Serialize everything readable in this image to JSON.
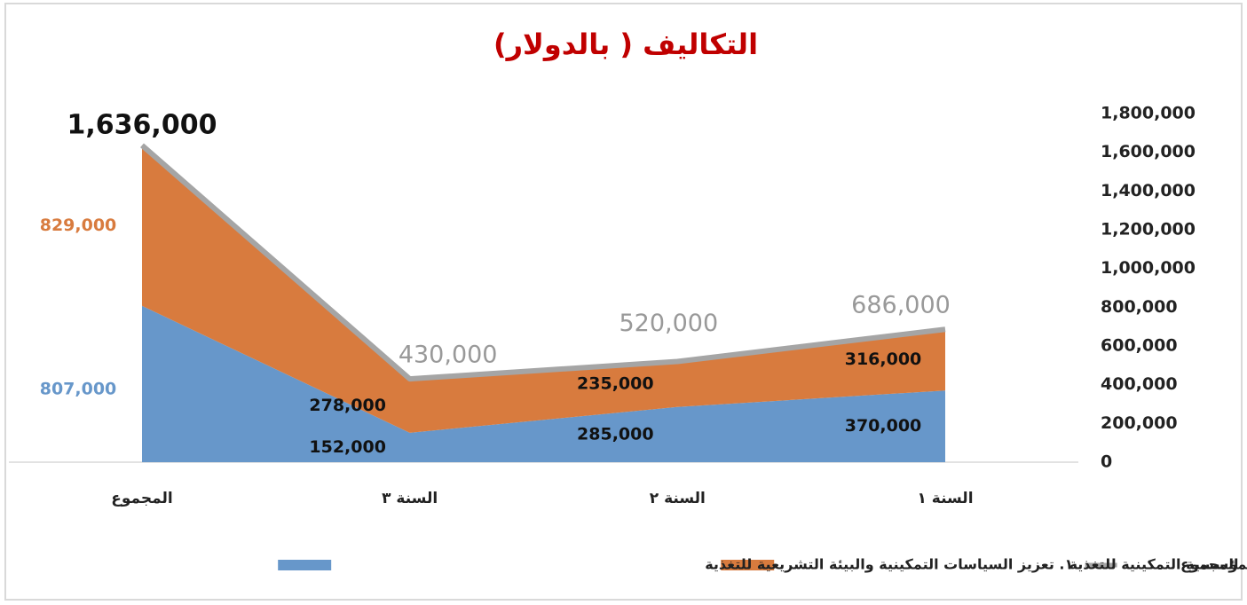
{
  "chart_data": {
    "type": "stacked_area",
    "title": "التكاليف ( بالدولار)",
    "categories": [
      "السنة ١",
      "السنة ٢",
      "السنة ٣",
      "المجموع"
    ],
    "x_reversed": true,
    "series": [
      {
        "name": "١. تعزيز السياسات التمكينية والبيئة التشريعية للتغذية",
        "color": "#6797ca",
        "values": [
          370000,
          285000,
          152000,
          807000
        ],
        "value_labels": [
          "370,000",
          "285,000",
          "152,000",
          "807,000"
        ]
      },
      {
        "name": "٢. تعزيز البنية المؤسسية التمكينية للتغذية",
        "color": "#d87b3e",
        "values": [
          316000,
          235000,
          278000,
          829000
        ],
        "value_labels": [
          "316,000",
          "235,000",
          "278,000",
          "829,000"
        ]
      },
      {
        "name": "المجموع",
        "color": "#a5a5a5",
        "kind": "line",
        "values": [
          686000,
          520000,
          430000,
          1636000
        ],
        "value_labels": [
          "686,000",
          "520,000",
          "430,000",
          "1,636,000"
        ]
      }
    ],
    "ylim": [
      0,
      1800000
    ],
    "yticks": [
      0,
      {
        "value": 200000,
        "label": "200,000"
      },
      {
        "value": 400000,
        "label": "400,000"
      },
      {
        "value": 600000,
        "label": "600,000"
      },
      {
        "value": 800000,
        "label": "800,000"
      },
      {
        "value": 1000000,
        "label": "1,000,000"
      },
      {
        "value": 1200000,
        "label": "1,200,000"
      },
      {
        "value": 1400000,
        "label": "1,400,000"
      },
      {
        "value": 1600000,
        "label": "1,600,000"
      },
      {
        "value": 1800000,
        "label": "1,800,000"
      }
    ],
    "y_axis_side": "right",
    "grid": false,
    "legend": "bottom"
  }
}
